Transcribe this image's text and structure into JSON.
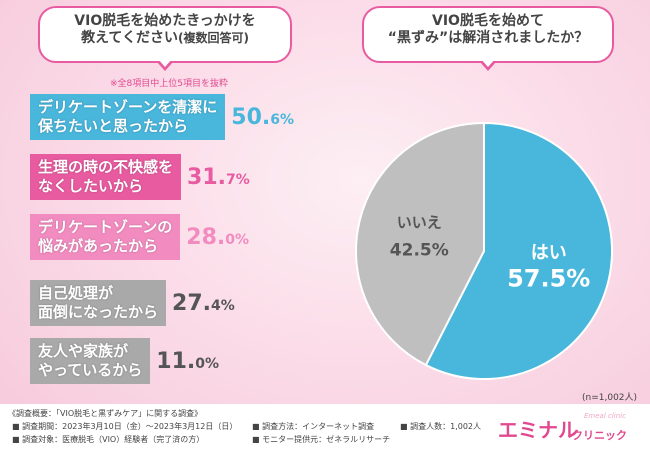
{
  "left_bubble": {
    "line1": "VIO脱毛を始めたきっかけを",
    "line2": "教えてください",
    "line2_sub": "(複数回答可)"
  },
  "right_bubble": {
    "line1": "VIO脱毛を始めて",
    "line2": "“黒ずみ”は解消されましたか？"
  },
  "note": "※全8項目中上位5項目を抜粋",
  "chart_data": [
    {
      "type": "bar",
      "title": "VIO脱毛を始めたきっかけを教えてください(複数回答可)",
      "categories": [
        [
          "デリケートゾーンを清潔に",
          "保ちたいと思ったから"
        ],
        [
          "生理の時の不快感を",
          "なくしたいから"
        ],
        [
          "デリケートゾーンの",
          "悩みがあったから"
        ],
        [
          "自己処理が",
          "面倒になったから"
        ],
        [
          "友人や家族が",
          "やっているから"
        ]
      ],
      "values": [
        50.6,
        31.7,
        28.0,
        27.4,
        11.0
      ],
      "value_labels": [
        [
          "50.",
          "6%"
        ],
        [
          "31.",
          "7%"
        ],
        [
          "28.",
          "0%"
        ],
        [
          "27.",
          "4%"
        ],
        [
          "11.",
          "0%"
        ]
      ],
      "colors": {
        "box": [
          "#49b6dc",
          "#e95ba0",
          "#f28cc0",
          "#a9a9a9",
          "#a9a9a9"
        ],
        "pct": [
          "#49b6dc",
          "#e95ba0",
          "#f28cc0",
          "#555555",
          "#555555"
        ]
      }
    },
    {
      "type": "pie",
      "title": "VIO脱毛を始めて“黒ずみ”は解消されましたか？",
      "slices": [
        {
          "label": "はい",
          "value": 57.5,
          "value_label": "57.5%",
          "color": "#49b6dc"
        },
        {
          "label": "いいえ",
          "value": 42.5,
          "value_label": "42.5%",
          "color": "#bfbfbf"
        }
      ]
    }
  ],
  "n_note": "(n=1,002人)",
  "footer": {
    "overview": "《調査概要：「VIO脱毛と黒ずみケア」に関する調査》",
    "period": "■ 調査期間：2023年3月10日（金）〜2023年3月12日（日）",
    "target": "■ 調査対象：医療脱毛（VIO）経験者（完了済の方）",
    "method": "■ 調査方法：インターネット調査",
    "provider": "■ モニター提供元：ゼネラルリサーチ",
    "count": "■ 調査人数：1,002人"
  },
  "logo": {
    "main": "エミナル",
    "sub": "クリニック",
    "tiny": "Emeal clinic"
  }
}
